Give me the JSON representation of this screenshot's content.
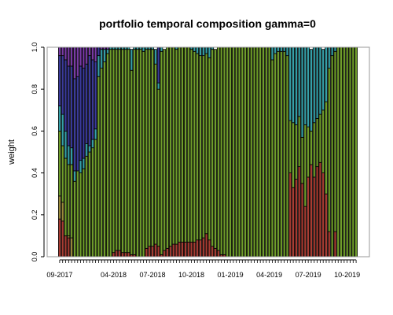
{
  "chart_data": {
    "type": "bar",
    "stacked": true,
    "title": "portfolio temporal composition gamma=0",
    "xlabel": "",
    "ylabel": "weight",
    "ylim": [
      0,
      1
    ],
    "y_ticks": [
      "0.0",
      "0.2",
      "0.4",
      "0.6",
      "0.8",
      "1.0"
    ],
    "x_tick_labels": [
      {
        "label": "09-2017",
        "bar": 0
      },
      {
        "label": "04-2018",
        "bar": 18
      },
      {
        "label": "07-2018",
        "bar": 31
      },
      {
        "label": "10-2018",
        "bar": 44
      },
      {
        "label": "01-2019",
        "bar": 57
      },
      {
        "label": "04-2019",
        "bar": 70
      },
      {
        "label": "07-2019",
        "bar": 83
      },
      {
        "label": "10-2019",
        "bar": 96
      }
    ],
    "grid": false,
    "legend": "none",
    "bar_count": 100,
    "series": [
      {
        "color": "#a83c32",
        "values": [
          0.18,
          0.17,
          0.1,
          0.09,
          0,
          0,
          0,
          0,
          0,
          0,
          0,
          0,
          0,
          0,
          0,
          0,
          0,
          0,
          0.02,
          0.03,
          0.03,
          0.02,
          0.02,
          0.02,
          0.01,
          0.01,
          0,
          0,
          0,
          0.04,
          0.05,
          0.05,
          0.06,
          0.05,
          0.01,
          0.03,
          0.04,
          0.05,
          0.06,
          0.06,
          0.07,
          0.07,
          0.07,
          0.07,
          0.07,
          0.07,
          0.08,
          0.08,
          0.09,
          0.11,
          0.08,
          0.05,
          0.04,
          0.03,
          0.01,
          0.01,
          0,
          0,
          0,
          0,
          0,
          0,
          0,
          0,
          0,
          0,
          0,
          0,
          0,
          0,
          0,
          0,
          0,
          0,
          0,
          0,
          0,
          0.4,
          0.33,
          0.37,
          0.43,
          0.35,
          0.24,
          0.38,
          0.44,
          0.38,
          0.43,
          0.45,
          0.4,
          0.3,
          0.12,
          0,
          0.12,
          0,
          0,
          0,
          0,
          0,
          0,
          0
        ]
      },
      {
        "color": "#9a8a3a",
        "values": [
          0.11,
          0.09,
          0,
          0.01,
          0.09,
          0,
          0,
          0,
          0,
          0,
          0,
          0,
          0,
          0,
          0,
          0,
          0,
          0,
          0,
          0,
          0,
          0,
          0,
          0,
          0,
          0,
          0,
          0,
          0,
          0,
          0,
          0,
          0,
          0,
          0,
          0,
          0,
          0,
          0,
          0,
          0,
          0,
          0,
          0,
          0,
          0,
          0,
          0,
          0,
          0,
          0,
          0,
          0,
          0,
          0,
          0,
          0,
          0,
          0,
          0,
          0,
          0,
          0,
          0,
          0,
          0,
          0,
          0,
          0,
          0,
          0,
          0,
          0,
          0,
          0,
          0,
          0,
          0,
          0,
          0,
          0,
          0,
          0,
          0,
          0,
          0,
          0,
          0,
          0,
          0,
          0,
          0,
          0,
          0,
          0,
          0,
          0,
          0,
          0,
          0
        ]
      },
      {
        "color": "#6f9e2a",
        "values": [
          0.31,
          0.27,
          0.37,
          0.34,
          0.35,
          0.36,
          0.41,
          0.4,
          0.42,
          0.48,
          0.5,
          0.52,
          0.56,
          0.86,
          0.9,
          0.93,
          0.97,
          0.99,
          0.97,
          0.96,
          0.96,
          0.97,
          0.97,
          0.97,
          0.88,
          0.98,
          0.99,
          0.99,
          0.98,
          0.95,
          0.94,
          0.94,
          0.86,
          0.75,
          0.97,
          0.96,
          0.96,
          0.95,
          0.94,
          0.93,
          0.93,
          0.93,
          0.93,
          0.93,
          0.92,
          0.91,
          0.89,
          0.88,
          0.87,
          0.86,
          0.87,
          0.94,
          0.95,
          0.97,
          0.99,
          0.99,
          1,
          1,
          1,
          1,
          1,
          1,
          1,
          1,
          1,
          1,
          1,
          1,
          1,
          1,
          1,
          0.94,
          0.97,
          0.98,
          0.98,
          0.98,
          0.96,
          0.25,
          0.31,
          0.26,
          0.24,
          0.22,
          0.39,
          0.24,
          0.16,
          0.26,
          0.23,
          0.23,
          0.3,
          0.44,
          0.78,
          0.96,
          0.86,
          1,
          1,
          1,
          1,
          1,
          1,
          1
        ]
      },
      {
        "color": "#35a0a8",
        "values": [
          0.12,
          0.15,
          0.13,
          0.09,
          0.08,
          0.05,
          0,
          0.06,
          0.05,
          0.06,
          0.03,
          0.04,
          0.05,
          0.1,
          0.09,
          0.06,
          0.02,
          0.01,
          0.01,
          0.01,
          0.01,
          0.01,
          0.01,
          0.01,
          0.1,
          0.01,
          0.01,
          0.01,
          0.02,
          0.01,
          0.01,
          0.01,
          0.07,
          0.03,
          0.02,
          0,
          0,
          0,
          0,
          0.01,
          0,
          0,
          0,
          0,
          0.01,
          0.02,
          0.03,
          0.04,
          0.04,
          0.03,
          0.05,
          0.01,
          0,
          0,
          0,
          0,
          0,
          0,
          0,
          0,
          0,
          0,
          0,
          0,
          0,
          0,
          0,
          0,
          0,
          0,
          0,
          0.06,
          0.03,
          0.02,
          0.02,
          0.02,
          0.04,
          0.35,
          0.36,
          0.37,
          0.33,
          0.43,
          0.37,
          0.38,
          0.39,
          0.36,
          0.34,
          0.32,
          0.29,
          0.26,
          0.1,
          0.04,
          0.02,
          0,
          0,
          0,
          0,
          0,
          0,
          0
        ]
      },
      {
        "color": "#3a3a9c",
        "values": [
          0.24,
          0.28,
          0.34,
          0.38,
          0.39,
          0.44,
          0.45,
          0.45,
          0.43,
          0.38,
          0.43,
          0.38,
          0.32,
          0.04,
          0,
          0,
          0,
          0,
          0,
          0,
          0,
          0,
          0,
          0,
          0,
          0,
          0,
          0,
          0,
          0,
          0,
          0,
          0,
          0.17,
          0,
          0,
          0,
          0,
          0,
          0,
          0,
          0,
          0,
          0,
          0,
          0,
          0,
          0,
          0,
          0,
          0,
          0,
          0,
          0,
          0,
          0,
          0,
          0,
          0,
          0,
          0,
          0,
          0,
          0,
          0,
          0,
          0,
          0,
          0,
          0,
          0,
          0,
          0,
          0,
          0,
          0,
          0,
          0,
          0,
          0,
          0,
          0,
          0,
          0,
          0,
          0,
          0,
          0,
          0,
          0,
          0,
          0,
          0,
          0,
          0,
          0,
          0,
          0,
          0,
          0
        ]
      },
      {
        "color": "#7a3aa8",
        "values": [
          0.04,
          0.04,
          0.06,
          0.09,
          0.09,
          0.15,
          0.14,
          0.09,
          0.1,
          0.08,
          0.04,
          0.06,
          0.07,
          0,
          0.01,
          0.01,
          0.01,
          0,
          0,
          0,
          0,
          0,
          0,
          0,
          0,
          0,
          0,
          0,
          0,
          0,
          0,
          0,
          0,
          0,
          0,
          0,
          0,
          0,
          0,
          0,
          0,
          0,
          0,
          0,
          0,
          0,
          0,
          0,
          0,
          0,
          0,
          0,
          0,
          0,
          0,
          0,
          0,
          0,
          0,
          0,
          0,
          0,
          0,
          0,
          0,
          0,
          0,
          0,
          0,
          0,
          0,
          0,
          0,
          0,
          0,
          0,
          0,
          0,
          0,
          0,
          0,
          0,
          0,
          0,
          0,
          0,
          0,
          0,
          0,
          0,
          0,
          0,
          0,
          0,
          0,
          0,
          0,
          0,
          0,
          0
        ]
      }
    ]
  }
}
